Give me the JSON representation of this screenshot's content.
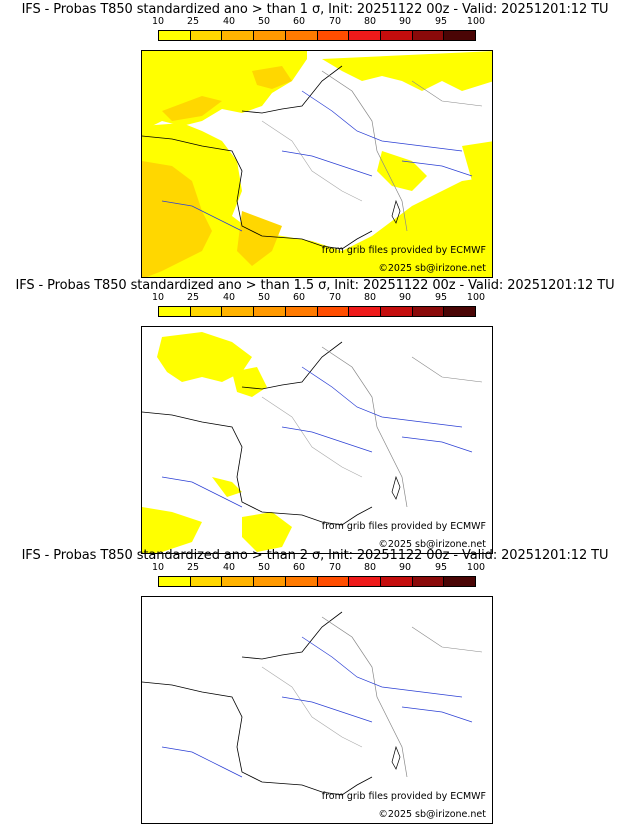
{
  "colorbar": {
    "ticks": [
      "10",
      "25",
      "40",
      "50",
      "60",
      "70",
      "80",
      "90",
      "95",
      "100"
    ],
    "colors": [
      "#ffff00",
      "#ffd700",
      "#ffb300",
      "#ff9900",
      "#ff7a00",
      "#ff4d00",
      "#ee1a1a",
      "#c40d0d",
      "#8a0a0a",
      "#4a0505"
    ]
  },
  "panels": [
    {
      "title": "IFS - Probas T850  standardized ano > than 1 σ, Init: 20251122 00z - Valid: 20251201:12 TU",
      "source": "from grib files provided by ECMWF",
      "copyright": "©2025 sb@irizone.net"
    },
    {
      "title": "IFS - Probas T850  standardized ano > than 1.5 σ, Init: 20251122 00z - Valid: 20251201:12 TU",
      "source": "from grib files provided by ECMWF",
      "copyright": "©2025 sb@irizone.net"
    },
    {
      "title": "IFS - Probas T850  standardized ano > than 2 σ, Init: 20251122 00z - Valid: 20251201:12 TU",
      "source": "from grib files provided by ECMWF",
      "copyright": "©2025 sb@irizone.net"
    }
  ]
}
